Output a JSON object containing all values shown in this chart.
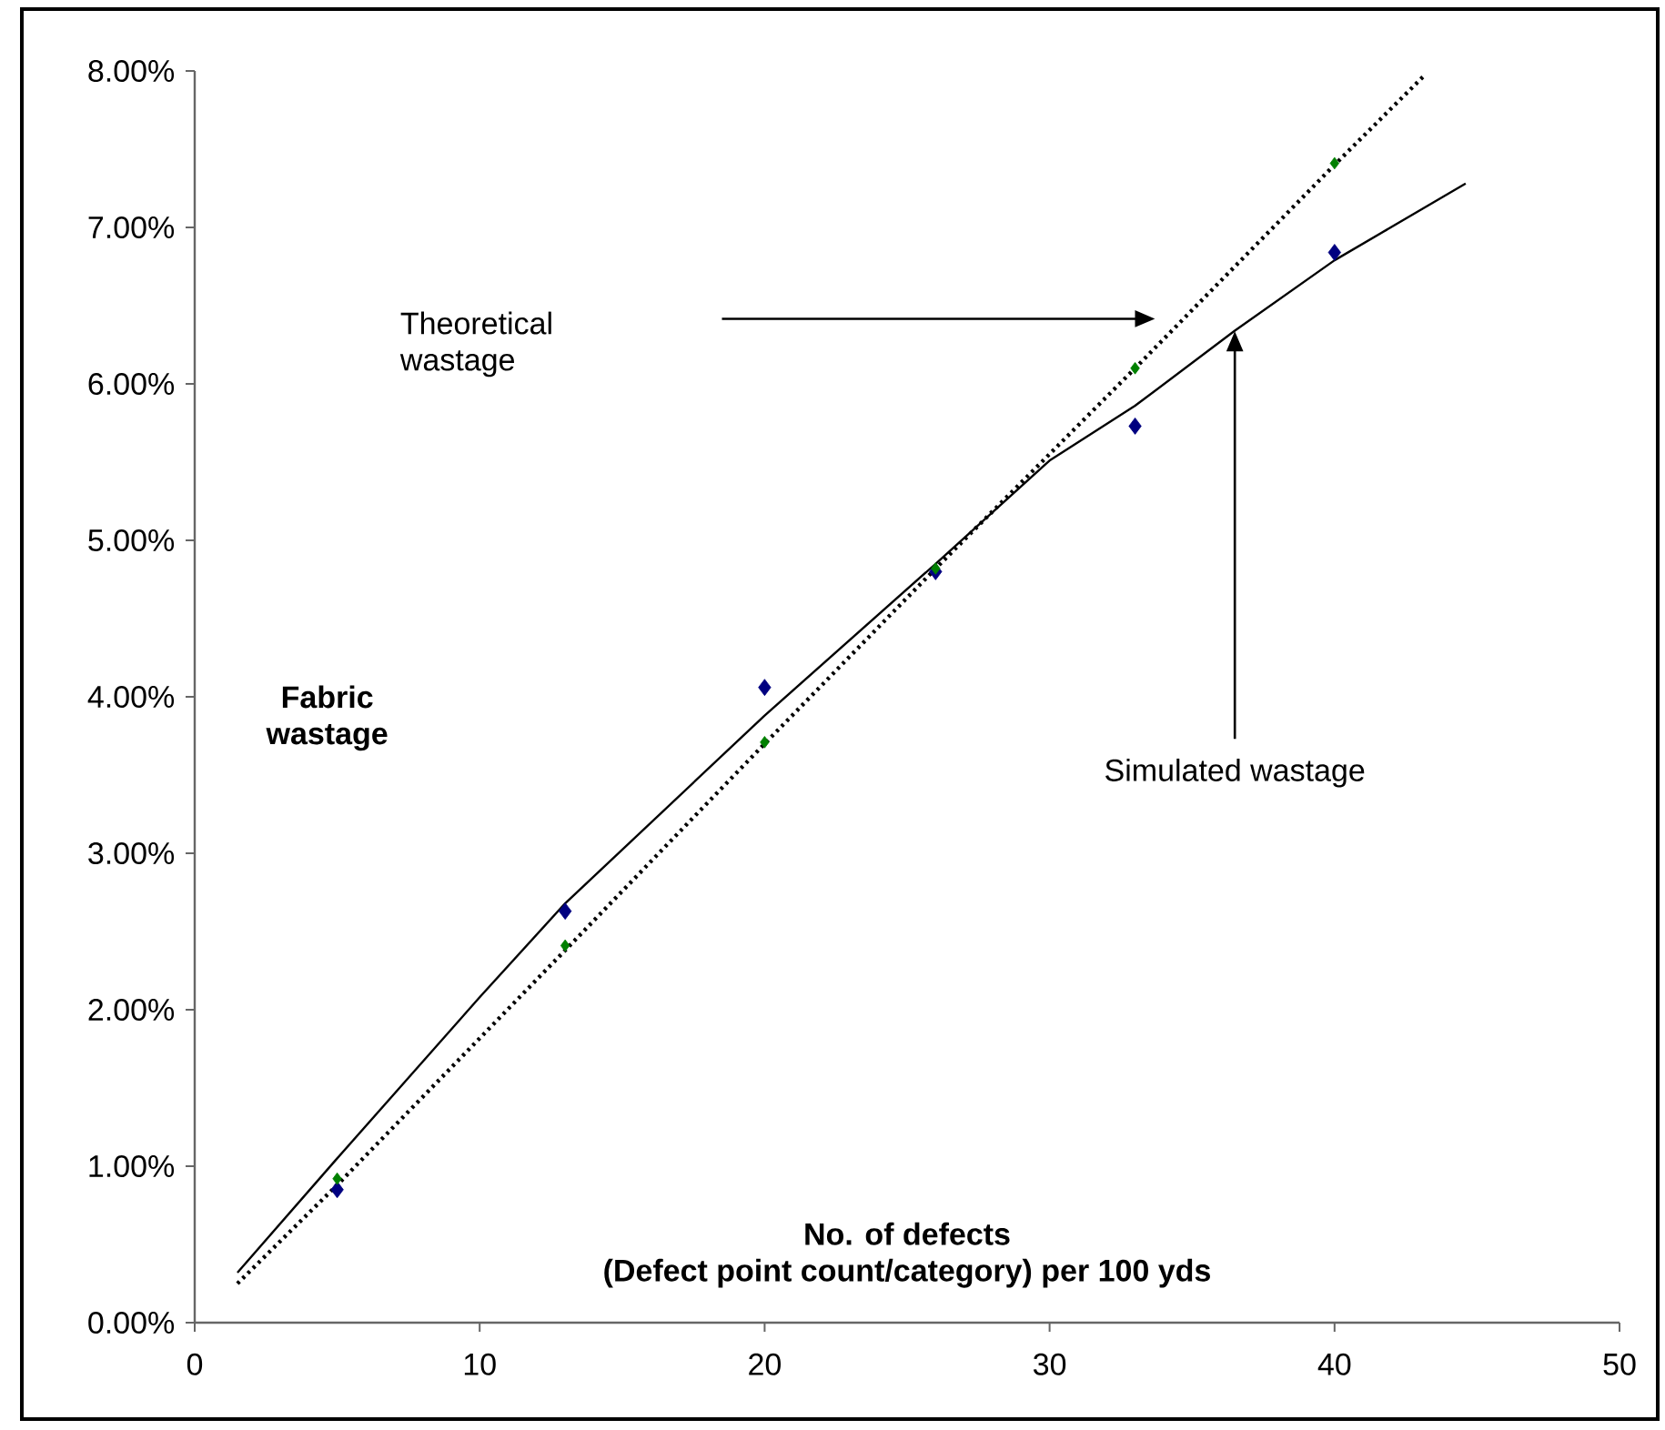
{
  "chart_data": {
    "type": "line",
    "xlabel": "No. of defects\n(Defect point count/category) per 100 yds",
    "ylabel": "Fabric\nwastage",
    "xlim": [
      0,
      50
    ],
    "xticks": [
      0,
      10,
      20,
      30,
      40,
      50
    ],
    "ylim": [
      0,
      8
    ],
    "yticks": [
      {
        "value": 0,
        "label": "0.00%"
      },
      {
        "value": 1,
        "label": "1.00%"
      },
      {
        "value": 2,
        "label": "2.00%"
      },
      {
        "value": 3,
        "label": "3.00%"
      },
      {
        "value": 4,
        "label": "4.00%"
      },
      {
        "value": 5,
        "label": "5.00%"
      },
      {
        "value": 6,
        "label": "6.00%"
      },
      {
        "value": 7,
        "label": "7.00%"
      },
      {
        "value": 8,
        "label": "8.00%"
      }
    ],
    "series": [
      {
        "color": "#000000",
        "line_style": "solid",
        "marker": "none",
        "x": [
          1.5,
          5,
          10,
          13,
          20,
          26,
          30,
          33,
          36.5,
          40,
          44.6
        ],
        "values": [
          0.32,
          1.05,
          2.08,
          2.68,
          3.88,
          4.85,
          5.51,
          5.86,
          6.34,
          6.79,
          7.28
        ]
      },
      {
        "color": "#000000",
        "line_style": "dotted",
        "marker": "none",
        "x": [
          1.5,
          5,
          13,
          20,
          26,
          33,
          40,
          43.2
        ],
        "values": [
          0.25,
          0.88,
          2.38,
          3.7,
          4.82,
          6.1,
          7.4,
          7.98
        ]
      },
      {
        "type": "scatter",
        "color": "#000080",
        "marker": "diamond",
        "x": [
          5,
          13,
          20,
          26,
          33,
          40
        ],
        "values": [
          0.85,
          2.63,
          4.06,
          4.8,
          5.73,
          6.84
        ]
      },
      {
        "type": "scatter",
        "color": "#008000",
        "marker": "diamond",
        "x": [
          5,
          13,
          20,
          26,
          33,
          40
        ],
        "values": [
          0.92,
          2.41,
          3.71,
          4.82,
          6.1,
          7.41
        ]
      }
    ],
    "annotations": [
      "Theoretical\nwastage",
      "Simulated wastage"
    ]
  }
}
